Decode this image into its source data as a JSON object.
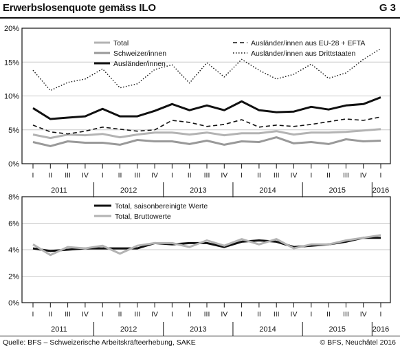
{
  "header": {
    "title": "Erwerbslosenquote gemäss ILO",
    "figure_id": "G 3"
  },
  "footer": {
    "source": "Quelle: BFS – Schweizerische Arbeitskräfteerhebung, SAKE",
    "copyright": "© BFS, Neuchâtel 2016"
  },
  "colors": {
    "total": "#b3b3b3",
    "swiss": "#999999",
    "foreigners": "#111111",
    "dark": "#111111"
  },
  "chart_data": [
    {
      "type": "line",
      "categories": [
        "I",
        "II",
        "III",
        "IV",
        "I",
        "II",
        "III",
        "IV",
        "I",
        "II",
        "III",
        "IV",
        "I",
        "II",
        "III",
        "IV",
        "I",
        "II",
        "III",
        "IV",
        "I"
      ],
      "year_labels": [
        "2011",
        "2012",
        "2013",
        "2014",
        "2015",
        "2016"
      ],
      "ylim": [
        0,
        20
      ],
      "yticks": [
        "0%",
        "5%",
        "10%",
        "15%",
        "20%"
      ],
      "grid": true,
      "series": [
        {
          "name": "Total",
          "style": "solid-light",
          "values": [
            4.3,
            3.8,
            4.3,
            4.2,
            4.4,
            3.9,
            4.3,
            4.6,
            4.6,
            4.3,
            4.6,
            4.2,
            4.5,
            4.5,
            4.8,
            4.3,
            4.6,
            4.6,
            4.7,
            4.9,
            5.1
          ]
        },
        {
          "name": "Schweizer/innen",
          "style": "solid-mid",
          "values": [
            3.2,
            2.6,
            3.3,
            3.1,
            3.1,
            2.8,
            3.5,
            3.3,
            3.3,
            2.9,
            3.4,
            2.8,
            3.3,
            3.2,
            3.9,
            3.0,
            3.2,
            2.9,
            3.6,
            3.3,
            3.4
          ]
        },
        {
          "name": "Ausländer/innen",
          "style": "solid-dark",
          "values": [
            8.2,
            6.6,
            6.8,
            7.0,
            8.1,
            7.0,
            7.0,
            7.8,
            8.8,
            7.9,
            8.6,
            7.9,
            9.2,
            7.9,
            7.6,
            7.7,
            8.4,
            8.0,
            8.6,
            8.8,
            9.8
          ]
        },
        {
          "name": "Ausländer/innen aus EU-28 + EFTA",
          "style": "dashed",
          "values": [
            5.7,
            4.7,
            4.4,
            4.8,
            5.4,
            5.1,
            4.8,
            5.0,
            6.4,
            6.1,
            5.5,
            5.8,
            6.5,
            5.4,
            5.7,
            5.5,
            5.8,
            6.2,
            6.6,
            6.4,
            6.9
          ]
        },
        {
          "name": "Ausländer/innen aus Drittstaaten",
          "style": "dotted",
          "values": [
            13.8,
            10.8,
            12.0,
            12.5,
            14.0,
            11.2,
            11.8,
            13.9,
            14.6,
            11.9,
            14.9,
            12.8,
            15.4,
            13.8,
            12.5,
            13.2,
            14.7,
            12.6,
            13.4,
            15.4,
            17.0
          ]
        }
      ]
    },
    {
      "type": "line",
      "categories": [
        "I",
        "II",
        "III",
        "IV",
        "I",
        "II",
        "III",
        "IV",
        "I",
        "II",
        "III",
        "IV",
        "I",
        "II",
        "III",
        "IV",
        "I",
        "II",
        "III",
        "IV",
        "I"
      ],
      "year_labels": [
        "2011",
        "2012",
        "2013",
        "2014",
        "2015",
        "2016"
      ],
      "ylim": [
        0,
        8
      ],
      "yticks": [
        "0%",
        "2%",
        "4%",
        "6%",
        "8%"
      ],
      "grid": true,
      "series": [
        {
          "name": "Total, saisonbereinigte Werte",
          "style": "solid-dark",
          "values": [
            4.1,
            3.9,
            4.0,
            4.1,
            4.1,
            4.1,
            4.1,
            4.5,
            4.4,
            4.5,
            4.5,
            4.2,
            4.6,
            4.7,
            4.6,
            4.2,
            4.3,
            4.4,
            4.6,
            4.9,
            4.9
          ]
        },
        {
          "name": "Total, Bruttowerte",
          "style": "solid-light",
          "values": [
            4.4,
            3.6,
            4.2,
            4.1,
            4.3,
            3.7,
            4.3,
            4.5,
            4.5,
            4.2,
            4.7,
            4.3,
            4.8,
            4.4,
            4.8,
            4.1,
            4.4,
            4.4,
            4.7,
            4.9,
            5.1
          ]
        }
      ]
    }
  ]
}
